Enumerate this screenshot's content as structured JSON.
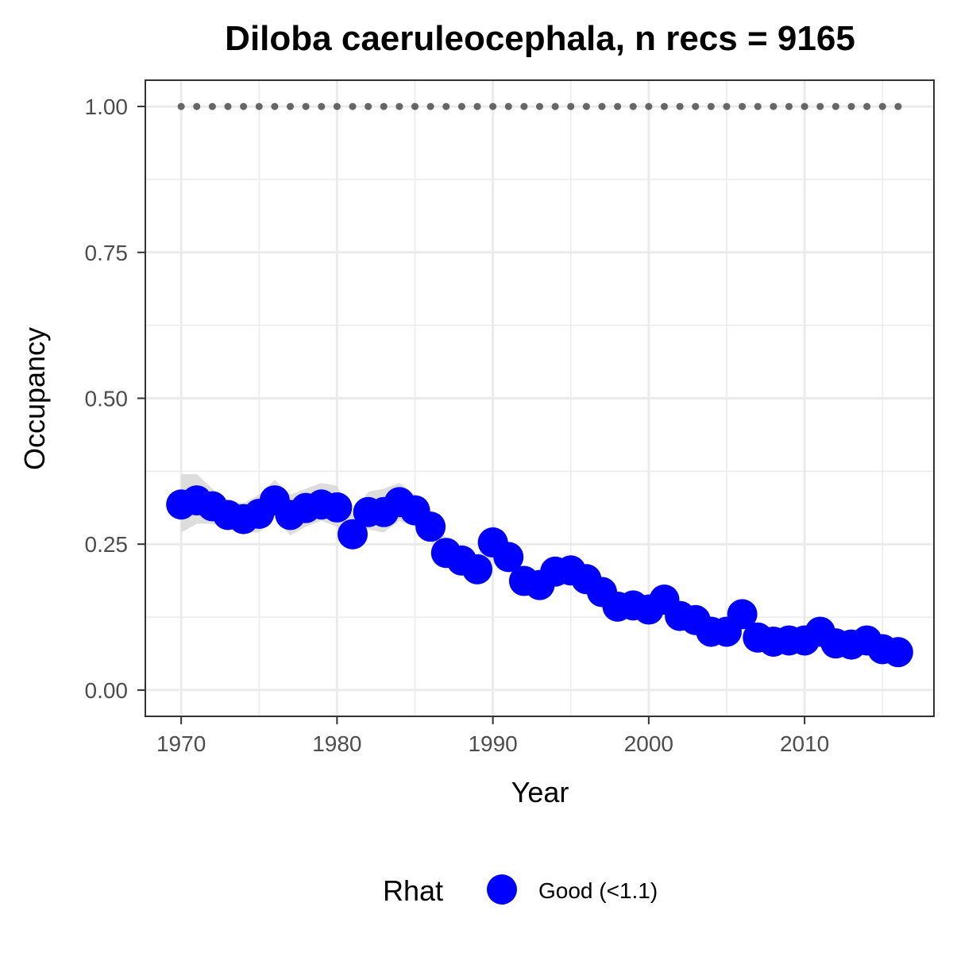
{
  "chart_data": {
    "type": "line",
    "title": "Diloba caeruleocephala, n recs = 9165",
    "xlabel": "Year",
    "ylabel": "Occupancy",
    "xlim": [
      1967.7,
      2018.3
    ],
    "ylim": [
      -0.045,
      1.045
    ],
    "x_ticks": [
      1970,
      1980,
      1990,
      2000,
      2010
    ],
    "x_tick_labels": [
      "1970",
      "1980",
      "1990",
      "2000",
      "2010"
    ],
    "y_ticks": [
      0.0,
      0.25,
      0.5,
      0.75,
      1.0
    ],
    "y_tick_labels": [
      "0.00",
      "0.25",
      "0.50",
      "0.75",
      "1.00"
    ],
    "grid": true,
    "legend": {
      "title": "Rhat",
      "position": "bottom",
      "entries": [
        {
          "label": "Good (<1.1)",
          "color": "#0000ff"
        }
      ]
    },
    "colors": {
      "points": "#0000ff",
      "ribbon": "#d9d9d9",
      "reference_dots": "#666666",
      "panel_border": "#333333",
      "grid": "#ebebeb"
    },
    "x": [
      1970,
      1971,
      1972,
      1973,
      1974,
      1975,
      1976,
      1977,
      1978,
      1979,
      1980,
      1981,
      1982,
      1983,
      1984,
      1985,
      1986,
      1987,
      1988,
      1989,
      1990,
      1991,
      1992,
      1993,
      1994,
      1995,
      1996,
      1997,
      1998,
      1999,
      2000,
      2001,
      2002,
      2003,
      2004,
      2005,
      2006,
      2007,
      2008,
      2009,
      2010,
      2011,
      2012,
      2013,
      2014,
      2015,
      2016
    ],
    "series": [
      {
        "values": [
          0.318,
          0.325,
          0.315,
          0.3,
          0.293,
          0.302,
          0.325,
          0.3,
          0.312,
          0.318,
          0.313,
          0.267,
          0.305,
          0.305,
          0.322,
          0.308,
          0.28,
          0.235,
          0.222,
          0.207,
          0.253,
          0.228,
          0.187,
          0.18,
          0.203,
          0.205,
          0.19,
          0.168,
          0.143,
          0.145,
          0.138,
          0.155,
          0.127,
          0.12,
          0.1,
          0.1,
          0.13,
          0.09,
          0.083,
          0.085,
          0.085,
          0.1,
          0.08,
          0.078,
          0.085,
          0.07,
          0.065
        ],
        "lower": [
          0.27,
          0.285,
          0.285,
          0.28,
          0.27,
          0.27,
          0.295,
          0.265,
          0.28,
          0.29,
          0.28,
          0.24,
          0.275,
          0.27,
          0.29,
          0.28,
          0.255,
          0.215,
          0.2,
          0.185,
          0.225,
          0.205,
          0.17,
          0.165,
          0.185,
          0.19,
          0.175,
          0.155,
          0.13,
          0.13,
          0.125,
          0.14,
          0.115,
          0.105,
          0.09,
          0.09,
          0.115,
          0.08,
          0.073,
          0.075,
          0.076,
          0.088,
          0.07,
          0.068,
          0.075,
          0.061,
          0.056
        ],
        "upper": [
          0.37,
          0.37,
          0.345,
          0.325,
          0.32,
          0.335,
          0.36,
          0.335,
          0.345,
          0.355,
          0.35,
          0.3,
          0.34,
          0.345,
          0.355,
          0.335,
          0.31,
          0.26,
          0.245,
          0.23,
          0.285,
          0.255,
          0.205,
          0.2,
          0.225,
          0.225,
          0.21,
          0.185,
          0.16,
          0.16,
          0.155,
          0.17,
          0.14,
          0.135,
          0.115,
          0.115,
          0.145,
          0.1,
          0.093,
          0.095,
          0.096,
          0.112,
          0.09,
          0.088,
          0.096,
          0.079,
          0.074
        ]
      }
    ],
    "reference_line": {
      "y": 1.0,
      "style": "dotted"
    }
  }
}
